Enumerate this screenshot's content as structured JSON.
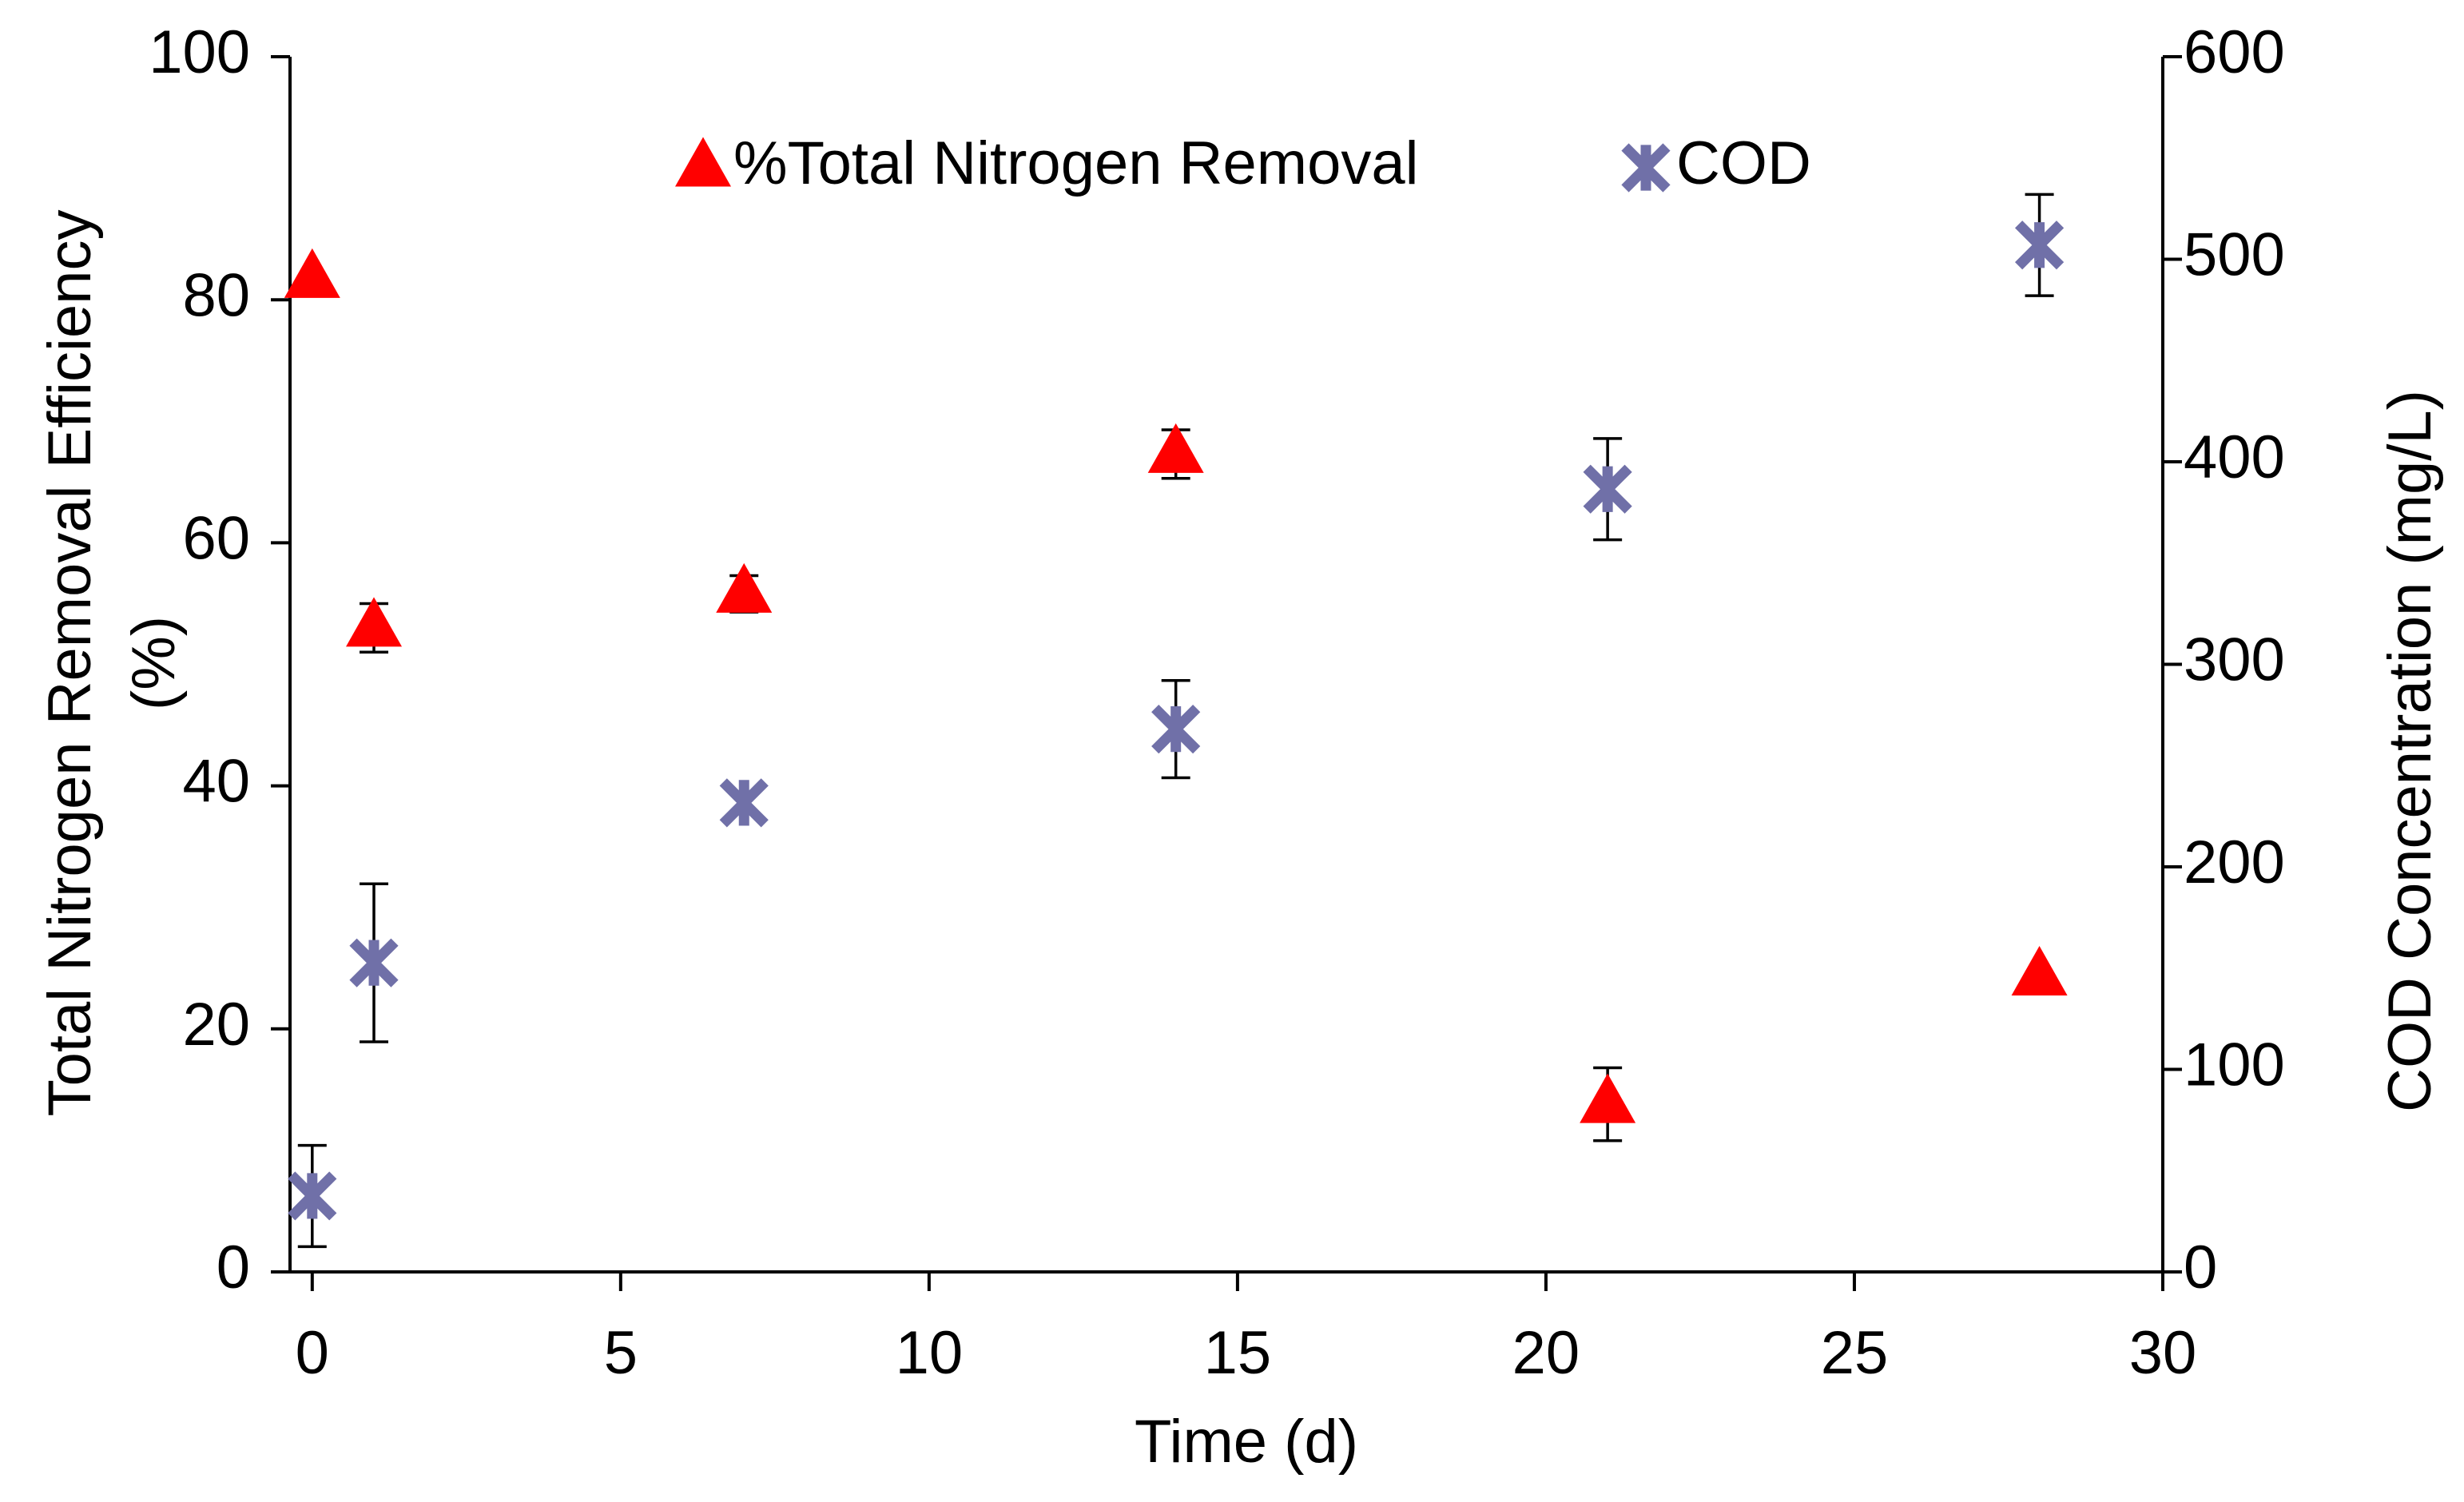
{
  "chart_data": {
    "type": "scatter",
    "xlabel": "Time (d)",
    "ylabel": [
      "Total Nitrogen Removal Efficiency",
      "(%)"
    ],
    "y2label": "COD Concentration (mg/L)",
    "x": [
      0,
      1,
      7,
      14,
      21,
      28
    ],
    "series": [
      {
        "name": "%Total Nitrogen Removal",
        "color": "#ff0000",
        "marker": "triangle",
        "axis": "y",
        "values": [
          81.7,
          53,
          55.8,
          67.3,
          13.8,
          24.3
        ],
        "errors": [
          0,
          2,
          1.5,
          2,
          3,
          0
        ]
      },
      {
        "name": "COD",
        "color": "#7070a8",
        "marker": "asterisk",
        "axis": "y2",
        "values": [
          37.5,
          152.6,
          231.6,
          268,
          386.5,
          507
        ],
        "errors": [
          25,
          39,
          5,
          24,
          25,
          25
        ]
      }
    ],
    "xlim": [
      -0.36,
      30
    ],
    "xticks": [
      0,
      5,
      10,
      15,
      20,
      25,
      30
    ],
    "ylim": [
      0,
      100
    ],
    "yticks": [
      0,
      20,
      40,
      60,
      80,
      100
    ],
    "y2lim": [
      0,
      600
    ],
    "y2ticks": [
      0,
      100,
      200,
      300,
      400,
      500,
      600
    ],
    "legend": "top"
  }
}
